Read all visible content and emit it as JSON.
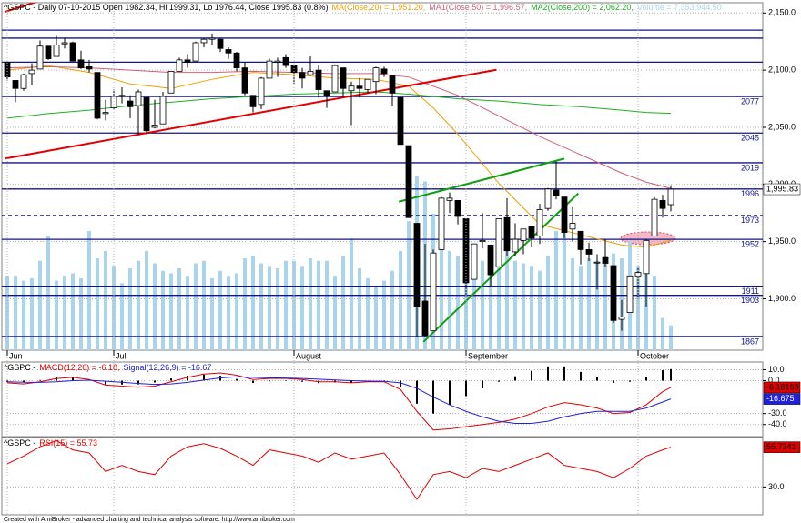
{
  "chart_data": [
    {
      "type": "candlestick",
      "title": "^GSPC - Daily 07-10-2015 Open 1982.34, Hi 1999.31, Lo 1976.44, Close 1995.83 (0.8%)",
      "categories": [
        "Jun",
        null,
        null,
        null,
        null,
        null,
        null,
        null,
        null,
        null,
        null,
        null,
        null,
        "Jul",
        null,
        null,
        null,
        null,
        null,
        null,
        null,
        null,
        null,
        null,
        null,
        null,
        null,
        null,
        null,
        null,
        null,
        null,
        null,
        null,
        null,
        "August",
        null,
        null,
        null,
        null,
        null,
        null,
        null,
        null,
        null,
        null,
        null,
        null,
        null,
        null,
        null,
        null,
        null,
        null,
        null,
        null,
        "September",
        null,
        null,
        null,
        null,
        null,
        null,
        null,
        null,
        null,
        null,
        null,
        null,
        null,
        null,
        null,
        null,
        null,
        null,
        null,
        null,
        "October",
        null,
        null,
        null,
        null
      ],
      "open": [
        2107,
        2091,
        2084,
        2097,
        2101,
        2121,
        2112,
        2123,
        2124,
        2109,
        2103,
        2098,
        2062,
        2067,
        2078,
        2073,
        2069,
        2076,
        2050,
        2053,
        2080,
        2099,
        2109,
        2108,
        2124,
        2127,
        2127,
        2118,
        2115,
        2102,
        2078,
        2070,
        2093,
        2107,
        2111,
        2104,
        2098,
        2096,
        2100,
        2082,
        2081,
        2102,
        2082,
        2086,
        2083,
        2090,
        2101,
        2095,
        2076,
        2034,
        1966,
        1898,
        1872,
        1943,
        1986,
        1986,
        1970,
        1917,
        1950,
        1947,
        1928,
        1971,
        1941,
        1951,
        1963,
        1955,
        1979,
        1995,
        1989,
        1961,
        1959,
        1943,
        1932,
        1936,
        1929,
        1882,
        1888,
        1920,
        1922,
        1955,
        1986,
        1982.34
      ],
      "high": [
        2107,
        2091,
        2097,
        2106,
        2126,
        2121,
        2130,
        2128,
        2125,
        2117,
        2109,
        2098,
        2074,
        2083,
        2085,
        2078,
        2083,
        2076,
        2074,
        2081,
        2099,
        2111,
        2114,
        2125,
        2128,
        2132,
        2128,
        2120,
        2116,
        2107,
        2078,
        2094,
        2110,
        2111,
        2114,
        2105,
        2102,
        2112,
        2104,
        2082,
        2105,
        2102,
        2090,
        2093,
        2092,
        2103,
        2103,
        2095,
        2076,
        2034,
        1966,
        1948,
        1943,
        1989,
        1993,
        1986,
        1970,
        1948,
        1975,
        1947,
        1970,
        1988,
        1966,
        1961,
        1963,
        1983,
        1997,
        2020,
        1989,
        1980,
        1959,
        1949,
        1939,
        1952,
        1929,
        1899,
        1920,
        1927,
        1952,
        1989,
        1991,
        1999.31
      ],
      "low": [
        2091,
        2072,
        2082,
        2087,
        2101,
        2109,
        2112,
        2119,
        2108,
        2101,
        2098,
        2057,
        2056,
        2066,
        2071,
        2058,
        2044,
        2044,
        2049,
        2053,
        2080,
        2099,
        2102,
        2108,
        2120,
        2122,
        2116,
        2110,
        2099,
        2078,
        2063,
        2066,
        2093,
        2094,
        2102,
        2088,
        2084,
        2095,
        2076,
        2067,
        2081,
        2076,
        2052,
        2076,
        2080,
        2079,
        2094,
        2069,
        2035,
        1971,
        1867,
        1867,
        1872,
        1943,
        1975,
        1965,
        1903,
        1917,
        1944,
        1911,
        1928,
        1937,
        1937,
        1939,
        1945,
        1948,
        1977,
        1987,
        1953,
        1950,
        1930,
        1933,
        1908,
        1928,
        1879,
        1872,
        1888,
        1900,
        1893,
        1955,
        1971,
        1976.44
      ],
      "close": [
        2094,
        2084,
        2096,
        2100,
        2121,
        2110,
        2122,
        2124,
        2108,
        2102,
        2101,
        2058,
        2063,
        2077,
        2077,
        2068,
        2081,
        2047,
        2052,
        2077,
        2099,
        2109,
        2107,
        2124,
        2127,
        2128,
        2119,
        2115,
        2102,
        2080,
        2068,
        2093,
        2108,
        2108,
        2104,
        2098,
        2093,
        2099,
        2083,
        2078,
        2104,
        2084,
        2086,
        2084,
        2092,
        2102,
        2097,
        2080,
        2035,
        1971,
        1893,
        1868,
        1940,
        1988,
        1988,
        1972,
        1914,
        1948,
        1951,
        1921,
        1970,
        1942,
        1952,
        1961,
        1953,
        1978,
        1996,
        1990,
        1958,
        1966,
        1943,
        1939,
        1932,
        1931,
        1881,
        1884,
        1920,
        1923,
        1951,
        1987,
        1979,
        1995.83
      ],
      "up_color": "#ffffff",
      "down_color": "#000000",
      "close_label": "1,995.83",
      "series": [
        {
          "name": "MA(Close,20) = 1,951.20,",
          "color": "#f0a000",
          "x": [
            0,
            5,
            10,
            15,
            20,
            25,
            30,
            35,
            40,
            45,
            49,
            52,
            55,
            60,
            65,
            70,
            75,
            78,
            81
          ],
          "values": [
            2100,
            2104,
            2098,
            2088,
            2084,
            2092,
            2098,
            2096,
            2093,
            2092,
            2086,
            2067,
            2044,
            2001,
            1965,
            1956,
            1947,
            1945,
            1951.2
          ]
        },
        {
          "name": "MA1(Close,50) = 1,996.57,",
          "color": "#d0607a",
          "x": [
            0,
            5,
            10,
            15,
            20,
            25,
            30,
            35,
            40,
            45,
            49,
            52,
            55,
            60,
            65,
            70,
            75,
            78,
            81
          ],
          "values": [
            2102,
            2103,
            2102,
            2100,
            2098,
            2098,
            2099,
            2098,
            2097,
            2097,
            2094,
            2086,
            2078,
            2060,
            2042,
            2026,
            2010,
            2002,
            1996.57
          ]
        },
        {
          "name": "MA2(Close,200) = 2,062.20,",
          "color": "#20b020",
          "x": [
            0,
            5,
            10,
            15,
            20,
            25,
            30,
            35,
            40,
            45,
            49,
            52,
            55,
            60,
            65,
            70,
            75,
            78,
            81
          ],
          "values": [
            2058,
            2062,
            2065,
            2069,
            2072,
            2075,
            2077,
            2079,
            2080,
            2081,
            2079,
            2077,
            2075,
            2073,
            2070,
            2068,
            2065,
            2063,
            2062.2
          ]
        }
      ],
      "volume": {
        "name": "Volume = 7,353,944.50",
        "color": "#a8d4ee",
        "values": [
          30,
          30,
          28,
          29,
          36,
          46,
          28,
          30,
          31,
          29,
          48,
          37,
          40,
          34,
          27,
          33,
          36,
          40,
          35,
          32,
          31,
          33,
          30,
          35,
          36,
          29,
          32,
          30,
          31,
          37,
          38,
          35,
          34,
          33,
          36,
          36,
          34,
          37,
          36,
          36,
          30,
          38,
          45,
          33,
          29,
          26,
          28,
          32,
          40,
          52,
          70,
          68,
          55,
          50,
          40,
          38,
          43,
          42,
          36,
          34,
          41,
          40,
          36,
          35,
          34,
          32,
          38,
          48,
          55,
          37,
          34,
          37,
          36,
          38,
          39,
          37,
          44,
          34,
          35,
          30,
          13,
          10
        ]
      },
      "ylim": [
        1855,
        2159
      ],
      "yticks": [
        {
          "value": 1900,
          "label": "1,900.0"
        },
        {
          "value": 1950,
          "label": "1,950.0"
        },
        {
          "value": 2000,
          "label": "2,000.0"
        },
        {
          "value": 2050,
          "label": "2,050.0"
        },
        {
          "value": 2100,
          "label": "2,100.0"
        },
        {
          "value": 2150,
          "label": "2,150.0"
        }
      ],
      "grid": true,
      "levels": [
        2077,
        2045,
        2019,
        1996,
        1973,
        1952,
        1911,
        1903,
        1867
      ],
      "level_styles": [
        "solid",
        "solid",
        "solid",
        "solid",
        "dashed",
        "solid",
        "solid",
        "solid",
        "solid"
      ],
      "unlabeled_levels": [
        2135,
        2128,
        2107
      ],
      "level_color": "#14148c",
      "trendlines": [
        {
          "color": "#e00000",
          "x": [
            -0.3,
            59.7
          ],
          "y": [
            2022.6,
            2100.3
          ]
        },
        {
          "color": "#e00000",
          "x": [
            -0.3,
            4.1
          ],
          "y": [
            2151,
            2161
          ]
        },
        {
          "color": "#10a010",
          "x": [
            47.8,
            68
          ],
          "y": [
            1984.9,
            2022.6
          ]
        },
        {
          "color": "#10a010",
          "x": [
            50.8,
            69.7
          ],
          "y": [
            1862.3,
            1992.2
          ]
        }
      ]
    },
    {
      "type": "line",
      "title": "^GSPC -",
      "x": [
        0,
        2,
        4,
        6,
        8,
        10,
        12,
        14,
        16,
        18,
        20,
        22,
        24,
        26,
        28,
        30,
        32,
        34,
        36,
        38,
        40,
        42,
        44,
        46,
        48,
        50,
        52,
        54,
        56,
        58,
        60,
        62,
        64,
        66,
        68,
        70,
        72,
        74,
        76,
        78,
        80,
        81
      ],
      "series": [
        {
          "name": "MACD(12,26) = -6.18,",
          "color": "#e00000",
          "values": [
            -2,
            -3,
            -1,
            2,
            3,
            1,
            -4,
            -5,
            -6,
            -5,
            -1,
            3,
            6,
            7,
            5,
            1,
            2,
            2,
            1,
            -1,
            -1,
            -2,
            -1,
            -1,
            -8,
            -28,
            -45,
            -44,
            -42,
            -40,
            -38,
            -35,
            -30,
            -24,
            -20,
            -22,
            -25,
            -30,
            -29,
            -22,
            -10,
            -6.18163
          ]
        },
        {
          "name": "Signal(12,26,9) = -16.67",
          "color": "#2020e0",
          "values": [
            -1,
            -1.5,
            -1.6,
            -1,
            0,
            0.4,
            -0.5,
            -1.5,
            -2.6,
            -3.4,
            -3,
            -1.6,
            0.5,
            2.5,
            3.5,
            3,
            2.6,
            2.4,
            2,
            1.3,
            0.6,
            0,
            -0.4,
            -0.6,
            -2,
            -7,
            -15,
            -22,
            -28,
            -33,
            -37,
            -39,
            -39,
            -37,
            -33,
            -30,
            -28,
            -28,
            -28,
            -25,
            -19.5,
            -16.675
          ]
        }
      ],
      "histogram": [
        -1,
        -1.5,
        0.6,
        3,
        3,
        0.6,
        -3.5,
        -3.5,
        -3.4,
        -1.6,
        2,
        4.6,
        5.5,
        4.5,
        1.5,
        -2,
        -0.6,
        -0.4,
        -1,
        -2.3,
        -1.6,
        -2,
        -0.6,
        -0.4,
        -6,
        -21,
        -30,
        -22,
        -14,
        -7,
        -1,
        4,
        9,
        13,
        13,
        8,
        3,
        -2,
        -1,
        3,
        9.5,
        10.49
      ],
      "histogram_color": "#000000",
      "ylim": [
        -51,
        17
      ],
      "yticks": [
        {
          "value": 10,
          "label": "10.0"
        },
        {
          "value": 0,
          "label": "0.0"
        },
        {
          "value": -30,
          "label": "-30.0"
        },
        {
          "value": -40,
          "label": "-40.0"
        }
      ],
      "grid": true
    },
    {
      "type": "line",
      "title": "^GSPC -",
      "x": [
        0,
        2,
        4,
        6,
        8,
        10,
        12,
        14,
        16,
        18,
        20,
        22,
        24,
        26,
        28,
        30,
        32,
        34,
        36,
        38,
        40,
        42,
        44,
        46,
        48,
        50,
        52,
        54,
        56,
        58,
        60,
        62,
        64,
        66,
        68,
        70,
        72,
        74,
        76,
        78,
        80,
        81
      ],
      "series": [
        {
          "name": "RSI(15) = 55.73",
          "color": "#e00000",
          "values": [
            45,
            50,
            56,
            60,
            54,
            52,
            40,
            44,
            40,
            38,
            50,
            56,
            58,
            55,
            50,
            44,
            54,
            52,
            50,
            46,
            52,
            48,
            50,
            52,
            38,
            22,
            38,
            40,
            36,
            42,
            40,
            44,
            48,
            52,
            44,
            42,
            40,
            36,
            42,
            50,
            54,
            55.7341
          ]
        }
      ],
      "ylim": [
        12,
        62
      ],
      "yticks": [
        {
          "value": 30,
          "label": "30.0"
        }
      ],
      "grid": true
    }
  ],
  "footer": "Created with AmiBroker - advanced charting and technical analysis software. http://www.amibroker.com"
}
